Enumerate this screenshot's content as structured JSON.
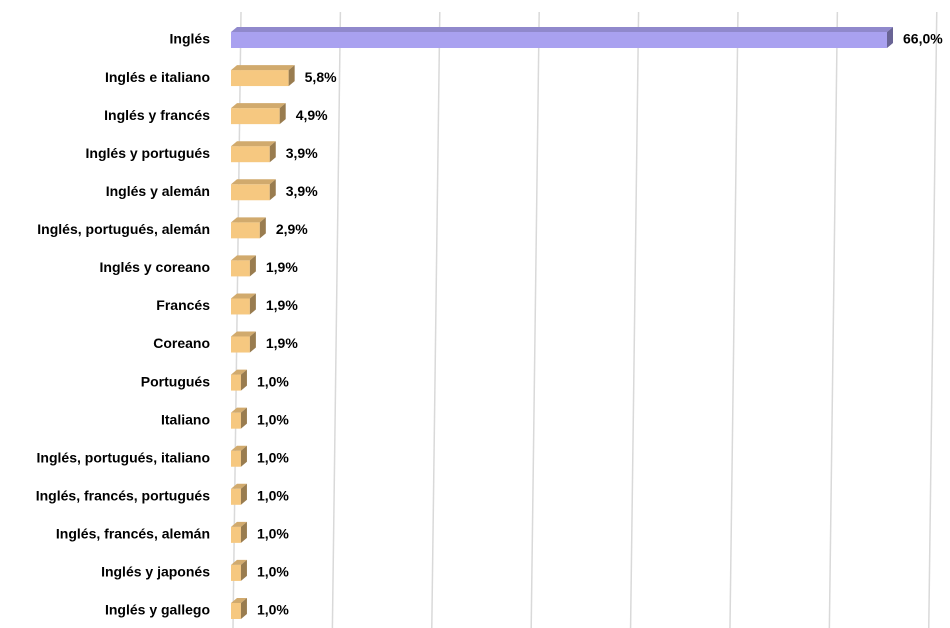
{
  "chart_data": {
    "type": "barh",
    "categories": [
      "Inglés",
      "Inglés e italiano",
      "Inglés y francés",
      "Inglés y portugués",
      "Inglés y alemán",
      "Inglés, portugués, alemán",
      "Inglés y coreano",
      "Francés",
      "Coreano",
      "Portugués",
      "Italiano",
      "Inglés, portugués, italiano",
      "Inglés, francés, portugués",
      "Inglés, francés, alemán",
      "Inglés y japonés",
      "Inglés y gallego"
    ],
    "values": [
      66.0,
      5.8,
      4.9,
      3.9,
      3.9,
      2.9,
      1.9,
      1.9,
      1.9,
      1.0,
      1.0,
      1.0,
      1.0,
      1.0,
      1.0,
      1.0
    ],
    "value_labels": [
      "66,0%",
      "5,8%",
      "4,9%",
      "3,9%",
      "3,9%",
      "2,9%",
      "1,9%",
      "1,9%",
      "1,9%",
      "1,0%",
      "1,0%",
      "1,0%",
      "1,0%",
      "1,0%",
      "1,0%",
      "1,0%"
    ],
    "colors": [
      "#a9a1f0",
      "#f6c880",
      "#f6c880",
      "#f6c880",
      "#f6c880",
      "#f6c880",
      "#f6c880",
      "#f6c880",
      "#f6c880",
      "#f6c880",
      "#f6c880",
      "#f6c880",
      "#f6c880",
      "#f6c880",
      "#f6c880",
      "#f6c880"
    ],
    "xlim": [
      0,
      70
    ],
    "xticks": [
      0,
      10,
      20,
      30,
      40,
      50,
      60,
      70
    ],
    "grid": true
  }
}
